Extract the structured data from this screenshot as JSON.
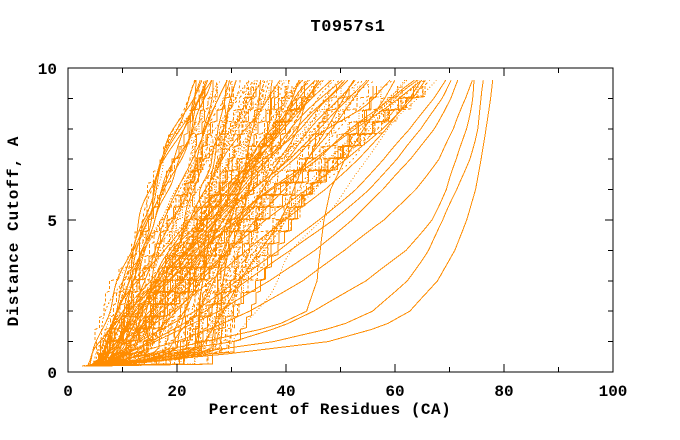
{
  "chart_data": {
    "type": "line",
    "title": "T0957s1",
    "xlabel": "Percent of Residues (CA)",
    "ylabel": "Distance Cutoff, A",
    "xlim": [
      0,
      100
    ],
    "ylim": [
      0,
      10
    ],
    "x_major_ticks": [
      0,
      20,
      40,
      60,
      80,
      100
    ],
    "x_minor_step": 10,
    "y_major_ticks": [
      0,
      5,
      10
    ],
    "y_minor_step": 1,
    "grid": false,
    "legend": "none",
    "axis_color": "#000000",
    "curve_color": "#ff8c00",
    "background_color": "#ffffff",
    "series_description": "Bundle of ~140 model accuracy curves: percent of CA residues fitting under each distance cutoff; dense cluster rising from ~5% at 0.2A to 23-57% at 9.6A, plus better outlier models reaching up to ~78%",
    "cutoff_start": 0.2,
    "cutoff_end": 9.6,
    "cutoff_step": 0.2,
    "cluster": {
      "count": 135,
      "seed": 42,
      "x_start_range": [
        3.8,
        6.8
      ],
      "knee_y": 0.7,
      "knee_gain_range": [
        0.5,
        24
      ],
      "knee_gain_skew": 1.5,
      "top_range": [
        23,
        57
      ],
      "extra_top_fraction": 0.15,
      "extra_top_range": [
        57,
        70
      ],
      "rise_exponent_range": [
        0.9,
        1.35
      ],
      "wobble_amp_range": [
        0.3,
        1.1
      ],
      "stair_every": 3
    },
    "outlier_cutoffs": [
      0.2,
      0.5,
      1,
      1.5,
      2,
      3,
      4,
      5,
      6,
      7,
      8,
      9,
      9.6
    ],
    "outlier_curves": [
      [
        5,
        25,
        48,
        58,
        63,
        68,
        71,
        73,
        74.5,
        75.5,
        76.5,
        77.5,
        78
      ],
      [
        5,
        18,
        38,
        50,
        56,
        62,
        66,
        69,
        71.5,
        73.5,
        75,
        76,
        76.5
      ],
      [
        4.5,
        12,
        30,
        39,
        45,
        55,
        62,
        66.5,
        69.5,
        71.5,
        73,
        74,
        74.5
      ],
      [
        4.5,
        10,
        20,
        27,
        33,
        43,
        51,
        58,
        63.5,
        68,
        71,
        73,
        74
      ],
      [
        5,
        9,
        16,
        22,
        28,
        37,
        45,
        52,
        58,
        63,
        67,
        70,
        71.5
      ],
      [
        4.5,
        8,
        13,
        18,
        23,
        31,
        39,
        46,
        52.5,
        58,
        63,
        67,
        69
      ],
      [
        5,
        12,
        25,
        38,
        44,
        46,
        46.5,
        47,
        48,
        50.5,
        54,
        58,
        60
      ],
      [
        4.5,
        7,
        11,
        15,
        19,
        26,
        33,
        40,
        47,
        53,
        58.5,
        63,
        65
      ],
      [
        4.5,
        6.5,
        10,
        13.5,
        17,
        23,
        29.5,
        36.5,
        44,
        51,
        57.5,
        63,
        65.5
      ],
      [
        5,
        9,
        15,
        20,
        25,
        33,
        41,
        48.5,
        55,
        60.5,
        65,
        68.5,
        70
      ]
    ],
    "dash_patterns": [
      "",
      "2 2",
      "1 2",
      "3 2",
      "",
      "1.5 1.5",
      "4 2",
      "2 3",
      "",
      "1 1.5",
      "3 3",
      ""
    ]
  }
}
